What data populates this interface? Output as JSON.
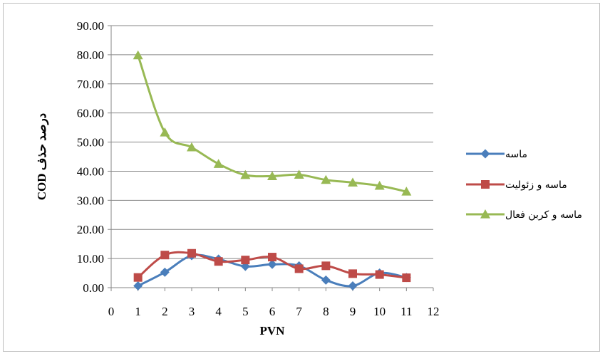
{
  "chart_data": {
    "type": "line",
    "xlabel": "PVN",
    "ylabel": "درصد حذف COD",
    "xlim": [
      0,
      12
    ],
    "ylim": [
      0,
      90
    ],
    "x_ticks": [
      "0",
      "1",
      "2",
      "3",
      "4",
      "5",
      "6",
      "7",
      "8",
      "9",
      "10",
      "11",
      "12"
    ],
    "y_ticks": [
      "0.00",
      "10.00",
      "20.00",
      "30.00",
      "40.00",
      "50.00",
      "60.00",
      "70.00",
      "80.00",
      "90.00"
    ],
    "grid": "horizontal",
    "legend_position": "right",
    "x": [
      1,
      2,
      3,
      4,
      5,
      6,
      7,
      8,
      9,
      10,
      11
    ],
    "series": [
      {
        "name": "ماسه",
        "color": "#4a7ebb",
        "marker": "diamond",
        "values": [
          0.6,
          5.3,
          11.0,
          9.8,
          7.3,
          8.0,
          7.5,
          2.6,
          0.6,
          5.0,
          3.5
        ]
      },
      {
        "name": "ماسه و زئولیت",
        "color": "#be4b48",
        "marker": "square",
        "values": [
          3.5,
          11.2,
          11.8,
          9.0,
          9.5,
          10.5,
          6.5,
          7.5,
          4.8,
          4.5,
          3.4
        ]
      },
      {
        "name": "ماسه و کربن فعال",
        "color": "#98b954",
        "marker": "triangle",
        "values": [
          79.8,
          53.3,
          48.2,
          42.5,
          38.7,
          38.3,
          38.8,
          37.0,
          36.1,
          35.0,
          33.0
        ]
      }
    ]
  }
}
